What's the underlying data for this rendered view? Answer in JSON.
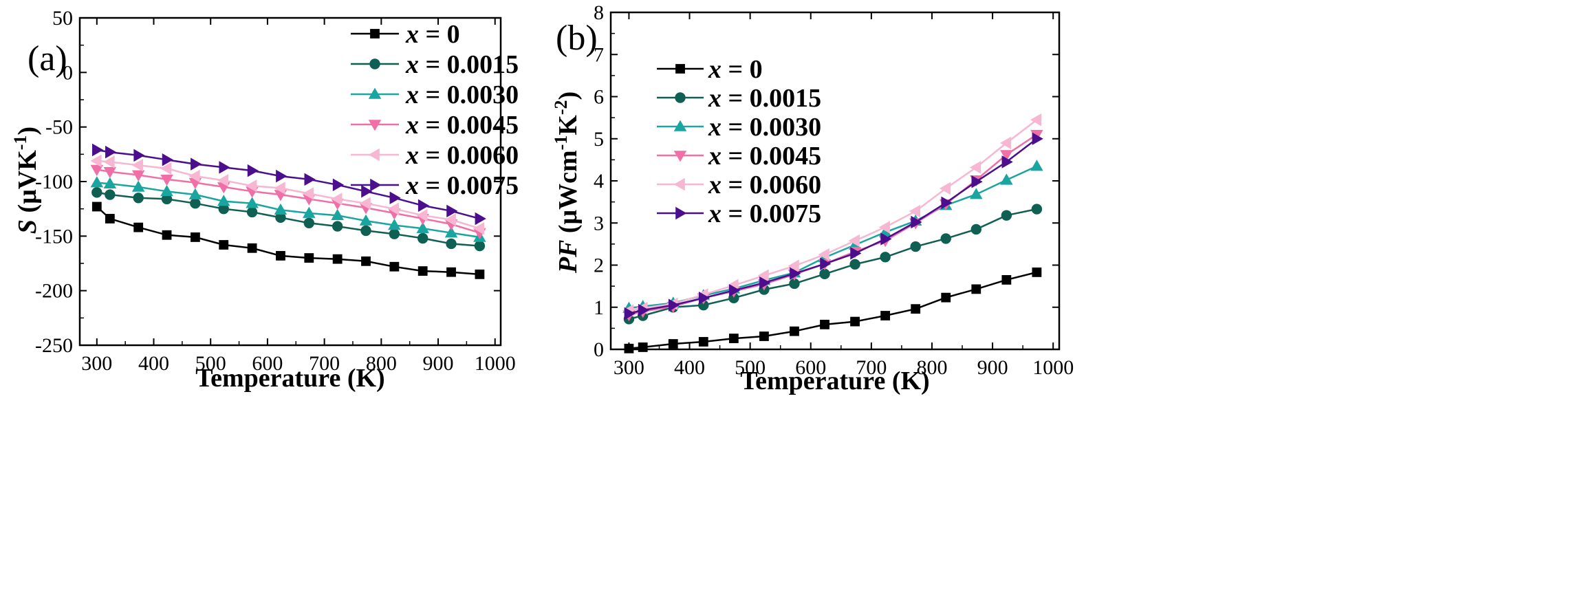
{
  "chart_data": [
    {
      "type": "line",
      "panel_label": "(a)",
      "xlabel": "Temperature (K)",
      "ylabel_parts": {
        "symbol": "S",
        "unit_open": "(μVK",
        "unit_exp": "-1",
        "unit_close": ")"
      },
      "xlim": [
        270,
        1010
      ],
      "ylim": [
        -250,
        50
      ],
      "xticks": [
        300,
        400,
        500,
        600,
        700,
        800,
        900,
        1000
      ],
      "yticks": [
        -250,
        -200,
        -150,
        -100,
        -50,
        0,
        50
      ],
      "legend_position": "top-right",
      "x": [
        300,
        323,
        373,
        423,
        473,
        523,
        573,
        623,
        673,
        723,
        773,
        823,
        873,
        923,
        973
      ],
      "series": [
        {
          "name": "x = 0",
          "var": "x",
          "value_label": " = 0",
          "color": "#000000",
          "marker": "square",
          "values": [
            -123,
            -134,
            -142,
            -149,
            -151,
            -158,
            -161,
            -168,
            -170,
            -171,
            -173,
            -178,
            -182,
            -183,
            -185
          ]
        },
        {
          "name": "x = 0.0015",
          "var": "x",
          "value_label": " = 0.0015",
          "color": "#0f5f52",
          "marker": "circle",
          "values": [
            -110,
            -112,
            -115,
            -116,
            -120,
            -125,
            -128,
            -133,
            -138,
            -141,
            -145,
            -148,
            -152,
            -157,
            -159
          ]
        },
        {
          "name": "x = 0.0030",
          "var": "x",
          "value_label": " = 0.0030",
          "color": "#1aa5a0",
          "marker": "triangle-up",
          "values": [
            -101,
            -102,
            -105,
            -109,
            -112,
            -118,
            -120,
            -126,
            -129,
            -131,
            -136,
            -140,
            -143,
            -147,
            -151
          ]
        },
        {
          "name": "x = 0.0045",
          "var": "x",
          "value_label": " = 0.0045",
          "color": "#f06fa6",
          "marker": "triangle-down",
          "values": [
            -89,
            -91,
            -94,
            -98,
            -101,
            -105,
            -109,
            -112,
            -116,
            -120,
            -124,
            -129,
            -134,
            -139,
            -147
          ]
        },
        {
          "name": "x = 0.0060",
          "var": "x",
          "value_label": " = 0.0060",
          "color": "#f7b6d2",
          "marker": "triangle-left",
          "values": [
            -81,
            -82,
            -85,
            -88,
            -95,
            -99,
            -104,
            -106,
            -111,
            -116,
            -120,
            -125,
            -131,
            -135,
            -143
          ]
        },
        {
          "name": "x = 0.0075",
          "var": "x",
          "value_label": " = 0.0075",
          "color": "#4b0e8c",
          "marker": "triangle-right",
          "values": [
            -71,
            -73,
            -76,
            -80,
            -84,
            -87,
            -90,
            -95,
            -98,
            -103,
            -109,
            -115,
            -122,
            -127,
            -134
          ]
        }
      ]
    },
    {
      "type": "line",
      "panel_label": "(b)",
      "xlabel": "Temperature (K)",
      "ylabel_parts": {
        "symbol": "PF",
        "unit_open": "(μWcm",
        "unit_exp1": "-1",
        "unit_mid": "K",
        "unit_exp2": "-2",
        "unit_close": ")"
      },
      "xlim": [
        270,
        1010
      ],
      "ylim": [
        0,
        8
      ],
      "xticks": [
        300,
        400,
        500,
        600,
        700,
        800,
        900,
        1000
      ],
      "yticks": [
        0,
        1,
        2,
        3,
        4,
        5,
        6,
        7,
        8
      ],
      "legend_position": "upper-left",
      "x": [
        300,
        323,
        373,
        423,
        473,
        523,
        573,
        623,
        673,
        723,
        773,
        823,
        873,
        923,
        973
      ],
      "series": [
        {
          "name": "x = 0",
          "var": "x",
          "value_label": " = 0",
          "color": "#000000",
          "marker": "square",
          "values": [
            0.02,
            0.05,
            0.13,
            0.18,
            0.26,
            0.31,
            0.43,
            0.59,
            0.66,
            0.8,
            0.96,
            1.23,
            1.43,
            1.65,
            1.83
          ]
        },
        {
          "name": "x = 0.0015",
          "var": "x",
          "value_label": " = 0.0015",
          "color": "#0f5f52",
          "marker": "circle",
          "values": [
            0.72,
            0.8,
            1.0,
            1.05,
            1.22,
            1.42,
            1.56,
            1.79,
            2.02,
            2.19,
            2.44,
            2.63,
            2.85,
            3.18,
            3.33
          ]
        },
        {
          "name": "x = 0.0030",
          "var": "x",
          "value_label": " = 0.0030",
          "color": "#1aa5a0",
          "marker": "triangle-up",
          "values": [
            0.98,
            1.02,
            1.1,
            1.28,
            1.44,
            1.64,
            1.82,
            2.18,
            2.48,
            2.78,
            3.05,
            3.42,
            3.68,
            4.02,
            4.35
          ]
        },
        {
          "name": "x = 0.0045",
          "var": "x",
          "value_label": " = 0.0045",
          "color": "#f06fa6",
          "marker": "triangle-down",
          "values": [
            0.82,
            0.9,
            1.02,
            1.22,
            1.38,
            1.55,
            1.78,
            2.03,
            2.32,
            2.58,
            3.0,
            3.45,
            4.02,
            4.62,
            5.1
          ]
        },
        {
          "name": "x = 0.0060",
          "var": "x",
          "value_label": " = 0.0060",
          "color": "#f7b6d2",
          "marker": "triangle-left",
          "values": [
            0.92,
            0.98,
            1.08,
            1.3,
            1.52,
            1.75,
            1.98,
            2.25,
            2.58,
            2.9,
            3.28,
            3.82,
            4.32,
            4.9,
            5.45
          ]
        },
        {
          "name": "x = 0.0075",
          "var": "x",
          "value_label": " = 0.0075",
          "color": "#4b0e8c",
          "marker": "triangle-right",
          "values": [
            0.85,
            0.93,
            1.05,
            1.22,
            1.4,
            1.58,
            1.8,
            2.03,
            2.28,
            2.62,
            3.02,
            3.48,
            3.98,
            4.45,
            5.0
          ]
        }
      ]
    }
  ]
}
